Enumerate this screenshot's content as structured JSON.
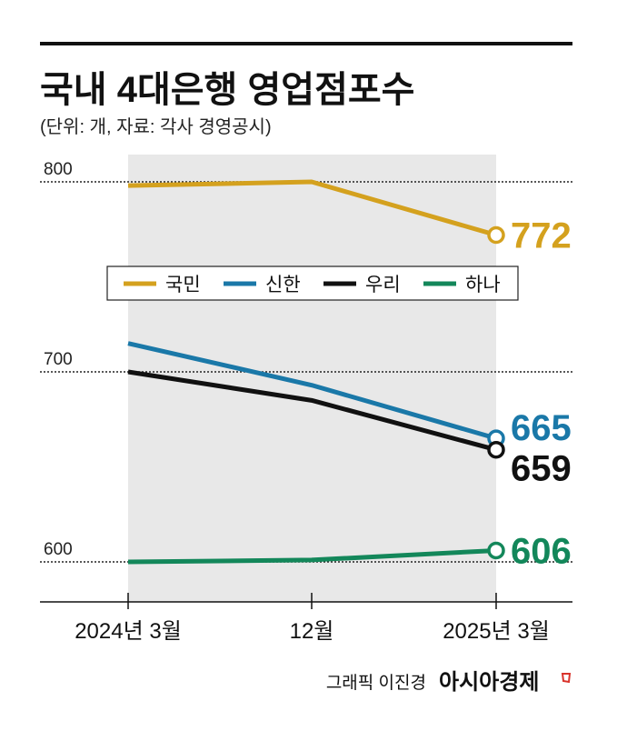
{
  "chart_data": {
    "type": "line",
    "title": "국내 4대은행 영업점포수",
    "subtitle": "(단위: 개, 자료: 각사 경영공시)",
    "categories": [
      "2024년 3월",
      "12월",
      "2025년 3월"
    ],
    "ylim": [
      580,
      810
    ],
    "yticks": [
      "600",
      "700",
      "800"
    ],
    "grid": true,
    "legend_position": "center",
    "series": [
      {
        "name": "국민",
        "color": "#d4a11e",
        "values": [
          798,
          800,
          772
        ],
        "end_label": "772"
      },
      {
        "name": "신한",
        "color": "#1a78a8",
        "values": [
          715,
          693,
          665
        ],
        "end_label": "665"
      },
      {
        "name": "우리",
        "color": "#111111",
        "values": [
          700,
          685,
          659
        ],
        "end_label": "659"
      },
      {
        "name": "하나",
        "color": "#13875a",
        "values": [
          600,
          601,
          606
        ],
        "end_label": "606"
      }
    ]
  },
  "credit": "그래픽 이진경",
  "brand": "아시아경제",
  "brand_color": "#d9332b"
}
